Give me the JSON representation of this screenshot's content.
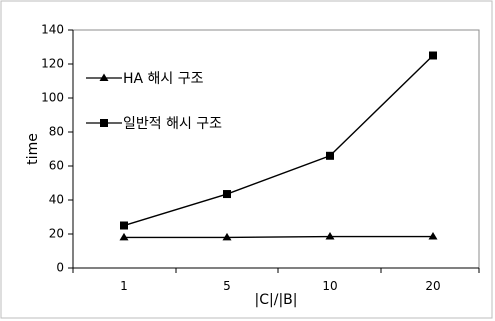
{
  "chart_data": {
    "type": "line",
    "xlabel": "|C|/|B|",
    "ylabel": "time",
    "categories": [
      "1",
      "5",
      "10",
      "20"
    ],
    "ylim": [
      0,
      140
    ],
    "yticks": [
      0,
      20,
      40,
      60,
      80,
      100,
      120,
      140
    ],
    "grid": false,
    "legend_position": "inside upper-left",
    "series": [
      {
        "name": "HA 해시 구조",
        "marker": "triangle",
        "values": [
          18,
          18,
          18.5,
          18.5
        ],
        "color": "#000000"
      },
      {
        "name": "일반적 해시 구조",
        "marker": "square",
        "values": [
          25,
          43.5,
          66,
          125
        ],
        "color": "#000000"
      }
    ]
  }
}
